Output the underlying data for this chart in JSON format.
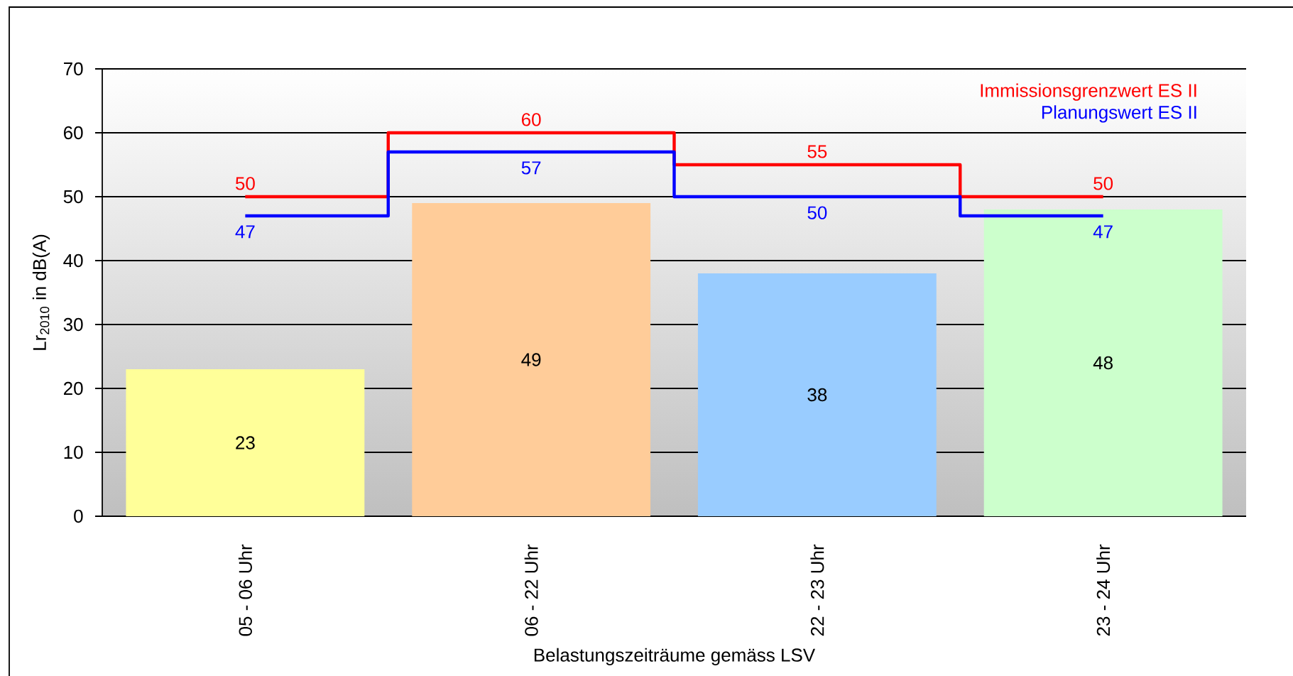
{
  "chart_data": {
    "type": "bar",
    "xlabel": "Belastungszeiträume gemäss LSV",
    "ylabel": "Lr$_{2010}$ in dB(A)",
    "categories": [
      "05 - 06 Uhr",
      "06 - 22 Uhr",
      "22 - 23 Uhr",
      "23 - 24 Uhr"
    ],
    "ylim": [
      0,
      70
    ],
    "yticks": [
      0,
      10,
      20,
      30,
      40,
      50,
      60,
      70
    ],
    "grid": "y",
    "legend": "top right",
    "data_labels": true,
    "series": [
      {
        "colors": [
          "#ffff99",
          "#ffcc99",
          "#99ccff",
          "#ccffcc"
        ],
        "values": [
          23,
          49,
          38,
          48
        ]
      },
      {
        "type": "step",
        "name": "Immissionsgrenzwert ES II",
        "color": "#ff0000",
        "values": [
          50,
          60,
          55,
          50
        ]
      },
      {
        "type": "step",
        "name": "Planungswert ES II",
        "color": "#0000ff",
        "values": [
          47,
          57,
          50,
          47
        ]
      }
    ]
  }
}
